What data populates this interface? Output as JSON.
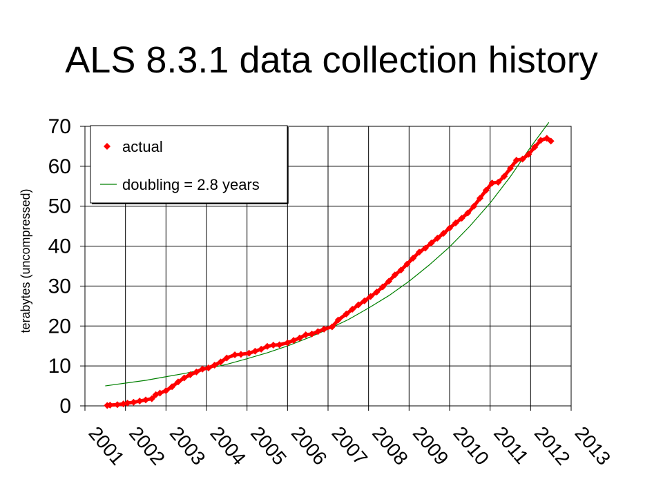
{
  "slide": {
    "title": "ALS 8.3.1 data collection history"
  },
  "colors": {
    "actual": "#ff0000",
    "doubling": "#008000",
    "grid": "#000000",
    "background": "#ffffff"
  },
  "chart_data": {
    "type": "scatter",
    "title": "",
    "xlabel": "",
    "ylabel": "terabytes (uncompressed)",
    "xlim": [
      2001,
      2013
    ],
    "ylim": [
      0,
      70
    ],
    "x_ticks": [
      "2001",
      "2002",
      "2003",
      "2004",
      "2005",
      "2006",
      "2007",
      "2008",
      "2009",
      "2010",
      "2011",
      "2012",
      "2013"
    ],
    "y_ticks": [
      "0",
      "10",
      "20",
      "30",
      "40",
      "50",
      "60",
      "70"
    ],
    "grid": true,
    "legend": {
      "position": "top-left",
      "entries": [
        {
          "label": "actual",
          "marker": "diamond",
          "series": "actual"
        },
        {
          "label": "doubling = 2.8 years",
          "marker": "line",
          "series": "doubling"
        }
      ]
    },
    "series": [
      {
        "name": "actual",
        "kind": "scatter",
        "marker": "diamond",
        "x": [
          2001.55,
          2001.62,
          2001.8,
          2001.95,
          2002.05,
          2002.2,
          2002.35,
          2002.5,
          2002.65,
          2002.75,
          2002.85,
          2003.0,
          2003.15,
          2003.3,
          2003.45,
          2003.6,
          2003.75,
          2003.9,
          2004.05,
          2004.2,
          2004.35,
          2004.5,
          2004.7,
          2004.85,
          2005.05,
          2005.2,
          2005.35,
          2005.5,
          2005.65,
          2005.8,
          2006.0,
          2006.15,
          2006.3,
          2006.45,
          2006.6,
          2006.75,
          2006.9,
          2007.1,
          2007.25,
          2007.45,
          2007.6,
          2007.75,
          2007.9,
          2008.05,
          2008.2,
          2008.35,
          2008.5,
          2008.65,
          2008.8,
          2008.95,
          2009.1,
          2009.25,
          2009.4,
          2009.55,
          2009.7,
          2009.85,
          2010.0,
          2010.15,
          2010.3,
          2010.45,
          2010.6,
          2010.75,
          2010.9,
          2011.05,
          2011.2,
          2011.35,
          2011.5,
          2011.65,
          2011.8,
          2011.95,
          2012.1,
          2012.25,
          2012.4,
          2012.5
        ],
        "y": [
          0.1,
          0.2,
          0.3,
          0.5,
          0.7,
          0.9,
          1.2,
          1.5,
          1.8,
          2.8,
          3.2,
          3.8,
          4.8,
          6.0,
          7.0,
          7.8,
          8.5,
          9.2,
          9.5,
          10.2,
          11.0,
          12.0,
          12.8,
          12.9,
          13.2,
          13.7,
          14.2,
          14.9,
          15.2,
          15.3,
          15.8,
          16.4,
          17.0,
          17.8,
          18.0,
          18.6,
          19.2,
          19.8,
          21.5,
          23.0,
          24.2,
          25.3,
          26.3,
          27.4,
          28.5,
          29.8,
          31.2,
          32.8,
          34.0,
          35.5,
          37.0,
          38.5,
          39.5,
          40.8,
          42.0,
          43.2,
          44.5,
          45.8,
          47.0,
          48.3,
          50.0,
          52.0,
          54.0,
          55.8,
          56.0,
          57.5,
          59.5,
          61.5,
          61.8,
          63.0,
          64.8,
          66.5,
          67.0,
          66.3
        ]
      },
      {
        "name": "doubling",
        "kind": "line",
        "doubling_years": 2.8,
        "x": [
          2001.5,
          2002.0,
          2002.5,
          2003.0,
          2003.5,
          2004.0,
          2004.5,
          2005.0,
          2005.5,
          2006.0,
          2006.5,
          2007.0,
          2007.5,
          2008.0,
          2008.5,
          2009.0,
          2009.5,
          2010.0,
          2010.5,
          2011.0,
          2011.5,
          2012.0,
          2012.45
        ],
        "y": [
          5.0,
          5.7,
          6.4,
          7.3,
          8.2,
          9.3,
          10.4,
          11.8,
          13.3,
          15.0,
          17.0,
          19.2,
          21.6,
          24.5,
          27.6,
          31.2,
          35.3,
          39.8,
          45.0,
          50.8,
          57.4,
          64.8,
          71.0
        ]
      }
    ]
  }
}
